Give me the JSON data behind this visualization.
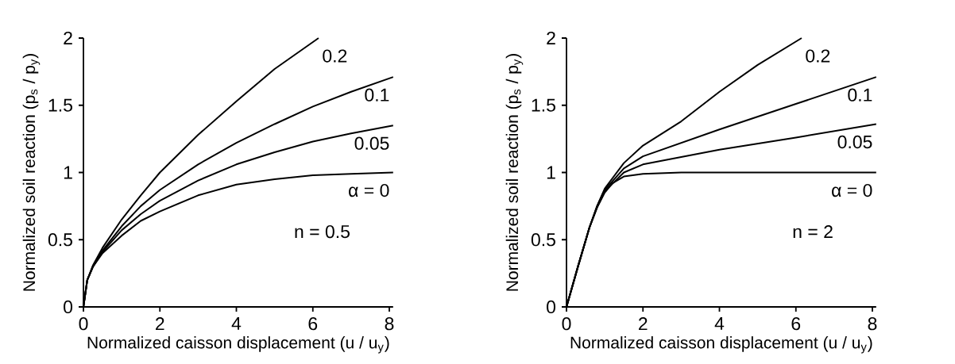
{
  "chart_data": [
    {
      "type": "line",
      "xlabel": "Normalized caisson displacement (u / u$_{y}$)",
      "ylabel": "Normalized soil reaction (p$_{s}$ / p$_{y}$)",
      "xlim": [
        0,
        8.1
      ],
      "ylim": [
        0,
        2
      ],
      "xticks": [
        0,
        2,
        4,
        6,
        8
      ],
      "yticks": [
        0,
        0.5,
        1,
        1.5,
        2
      ],
      "annotations": [
        "n = 0.5"
      ],
      "series": [
        {
          "name": "α = 0",
          "color": "#000000",
          "x": [
            0,
            0.1,
            0.25,
            0.5,
            1,
            1.5,
            2,
            3,
            4,
            5,
            6,
            7,
            8.1
          ],
          "values": [
            0,
            0.2,
            0.3,
            0.4,
            0.53,
            0.64,
            0.71,
            0.83,
            0.91,
            0.95,
            0.98,
            0.99,
            1.0
          ]
        },
        {
          "name": "0.05",
          "color": "#000000",
          "x": [
            0,
            0.1,
            0.25,
            0.5,
            1,
            1.5,
            2,
            3,
            4,
            5,
            6,
            7,
            8.1
          ],
          "values": [
            0,
            0.2,
            0.3,
            0.41,
            0.57,
            0.69,
            0.79,
            0.94,
            1.06,
            1.15,
            1.23,
            1.29,
            1.35
          ]
        },
        {
          "name": "0.1",
          "color": "#000000",
          "x": [
            0,
            0.1,
            0.25,
            0.5,
            1,
            1.5,
            2,
            3,
            4,
            5,
            6,
            7,
            8.1
          ],
          "values": [
            0,
            0.2,
            0.3,
            0.42,
            0.6,
            0.75,
            0.87,
            1.06,
            1.22,
            1.36,
            1.49,
            1.6,
            1.71
          ]
        },
        {
          "name": "0.2",
          "color": "#000000",
          "x": [
            0,
            0.1,
            0.25,
            0.5,
            1,
            1.5,
            2,
            3,
            4,
            5,
            6.15
          ],
          "values": [
            0,
            0.2,
            0.31,
            0.44,
            0.65,
            0.83,
            1.0,
            1.28,
            1.53,
            1.77,
            2.0
          ]
        }
      ]
    },
    {
      "type": "line",
      "xlabel": "Normalized caisson displacement (u / u$_{y}$)",
      "ylabel": "Normalized soil reaction (p$_{s}$ / p$_{y}$)",
      "xlim": [
        0,
        8.1
      ],
      "ylim": [
        0,
        2
      ],
      "xticks": [
        0,
        2,
        4,
        6,
        8
      ],
      "yticks": [
        0,
        0.5,
        1,
        1.5,
        2
      ],
      "annotations": [
        "n = 2"
      ],
      "series": [
        {
          "name": "α = 0",
          "color": "#000000",
          "x": [
            0,
            0.3,
            0.6,
            0.8,
            1,
            1.2,
            1.5,
            2,
            3,
            8.1
          ],
          "values": [
            0,
            0.3,
            0.59,
            0.74,
            0.85,
            0.92,
            0.97,
            0.99,
            1.0,
            1.0
          ]
        },
        {
          "name": "0.05",
          "color": "#000000",
          "x": [
            0,
            0.3,
            0.6,
            0.8,
            1,
            1.5,
            2,
            4,
            6,
            8.1
          ],
          "values": [
            0,
            0.3,
            0.59,
            0.74,
            0.86,
            1.0,
            1.06,
            1.17,
            1.26,
            1.36
          ]
        },
        {
          "name": "0.1",
          "color": "#000000",
          "x": [
            0,
            0.3,
            0.6,
            0.8,
            1,
            1.5,
            2,
            4,
            6,
            8.1
          ],
          "values": [
            0,
            0.3,
            0.59,
            0.75,
            0.87,
            1.03,
            1.12,
            1.32,
            1.51,
            1.71
          ]
        },
        {
          "name": "0.2",
          "color": "#000000",
          "x": [
            0,
            0.3,
            0.6,
            0.8,
            1,
            1.5,
            2,
            3,
            4,
            5,
            6.15
          ],
          "values": [
            0,
            0.3,
            0.59,
            0.75,
            0.88,
            1.07,
            1.2,
            1.38,
            1.6,
            1.8,
            2.0
          ]
        }
      ]
    }
  ]
}
